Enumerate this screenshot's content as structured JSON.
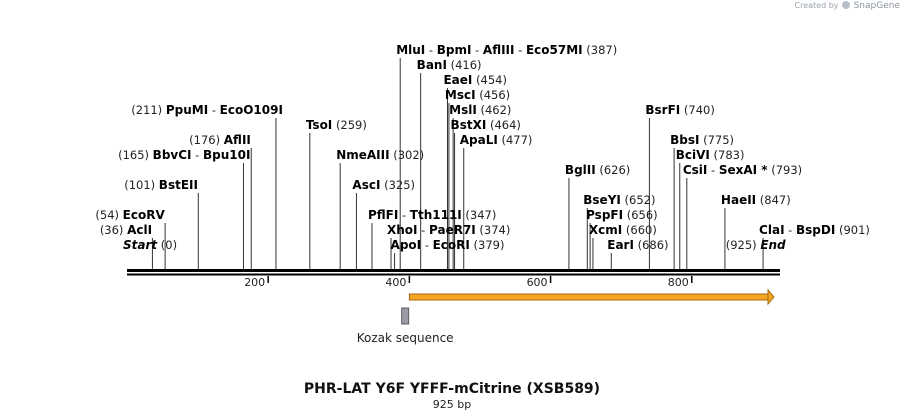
{
  "credit": {
    "prefix": "Created by",
    "brand": "SnapGene"
  },
  "map": {
    "title": "PHR-LAT Y6F YFFF-mCitrine (XSB589)",
    "length_label": "925 bp",
    "length": 925,
    "ticks": [
      200,
      400,
      600,
      800
    ],
    "feature": {
      "name": "",
      "start": 400,
      "end": 925,
      "color": "#f5a623"
    },
    "kozak": {
      "name": "Kozak sequence",
      "pos": 394,
      "color": "#9a9ba6"
    }
  },
  "sites": [
    {
      "row": 0,
      "pos": 0,
      "names": [
        "Start"
      ],
      "num": "(0)",
      "italic": true
    },
    {
      "row": 0,
      "pos": 925,
      "names": [
        "End"
      ],
      "num": "(925)",
      "italic": true,
      "right": true
    },
    {
      "row": 0,
      "pos": 379,
      "names": [
        "ApoI",
        "EcoRI"
      ],
      "num": "(379)"
    },
    {
      "row": 0,
      "pos": 686,
      "names": [
        "EarI"
      ],
      "num": "(686)"
    },
    {
      "row": 1,
      "pos": 36,
      "names": [
        "AclI"
      ],
      "num": "(36)",
      "right": true
    },
    {
      "row": 1,
      "pos": 374,
      "names": [
        "XhoI",
        "PaeR7I"
      ],
      "num": "(374)"
    },
    {
      "row": 1,
      "pos": 660,
      "names": [
        "XcmI"
      ],
      "num": "(660)"
    },
    {
      "row": 1,
      "pos": 901,
      "names": [
        "ClaI",
        "BspDI"
      ],
      "num": "(901)"
    },
    {
      "row": 2,
      "pos": 54,
      "names": [
        "EcoRV"
      ],
      "num": "(54)",
      "right": true
    },
    {
      "row": 2,
      "pos": 347,
      "names": [
        "PflFI",
        "Tth111I"
      ],
      "num": "(347)"
    },
    {
      "row": 2,
      "pos": 656,
      "names": [
        "PspFI"
      ],
      "num": "(656)"
    },
    {
      "row": 3,
      "pos": 652,
      "names": [
        "BseYI"
      ],
      "num": "(652)"
    },
    {
      "row": 3,
      "pos": 847,
      "names": [
        "HaeII"
      ],
      "num": "(847)"
    },
    {
      "row": 4,
      "pos": 101,
      "names": [
        "BstEII"
      ],
      "num": "(101)",
      "right": true
    },
    {
      "row": 4,
      "pos": 325,
      "names": [
        "AscI"
      ],
      "num": "(325)"
    },
    {
      "row": 5,
      "pos": 626,
      "names": [
        "BglII"
      ],
      "num": "(626)"
    },
    {
      "row": 5,
      "pos": 793,
      "names": [
        "CsiI",
        "SexAI *"
      ],
      "num": "(793)"
    },
    {
      "row": 6,
      "pos": 165,
      "names": [
        "BbvCI",
        "Bpu10I"
      ],
      "num": "(165)",
      "right": true
    },
    {
      "row": 6,
      "pos": 302,
      "names": [
        "NmeAIII"
      ],
      "num": "(302)"
    },
    {
      "row": 6,
      "pos": 783,
      "names": [
        "BciVI"
      ],
      "num": "(783)"
    },
    {
      "row": 7,
      "pos": 176,
      "names": [
        "AflII"
      ],
      "num": "(176)",
      "right": true
    },
    {
      "row": 7,
      "pos": 477,
      "names": [
        "ApaLI"
      ],
      "num": "(477)"
    },
    {
      "row": 7,
      "pos": 775,
      "names": [
        "BbsI"
      ],
      "num": "(775)"
    },
    {
      "row": 8,
      "pos": 259,
      "names": [
        "TsoI"
      ],
      "num": "(259)"
    },
    {
      "row": 8,
      "pos": 464,
      "names": [
        "BstXI"
      ],
      "num": "(464)"
    },
    {
      "row": 9,
      "pos": 211,
      "names": [
        "PpuMI",
        "EcoO109I"
      ],
      "num": "(211)",
      "right": true
    },
    {
      "row": 9,
      "pos": 462,
      "names": [
        "MslI"
      ],
      "num": "(462)"
    },
    {
      "row": 9,
      "pos": 740,
      "names": [
        "BsrFI"
      ],
      "num": "(740)"
    },
    {
      "row": 10,
      "pos": 456,
      "names": [
        "MscI"
      ],
      "num": "(456)"
    },
    {
      "row": 11,
      "pos": 454,
      "names": [
        "EaeI"
      ],
      "num": "(454)"
    },
    {
      "row": 12,
      "pos": 416,
      "names": [
        "BanI"
      ],
      "num": "(416)"
    },
    {
      "row": 13,
      "pos": 387,
      "names": [
        "MluI",
        "BpmI",
        "AflIII",
        "Eco57MI"
      ],
      "num": "(387)"
    }
  ]
}
